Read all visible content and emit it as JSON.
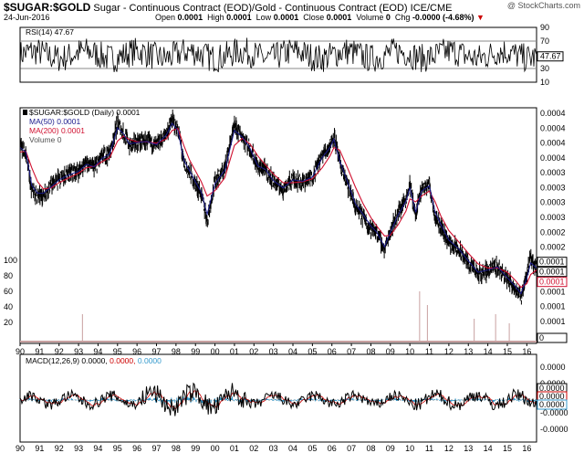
{
  "header": {
    "symbol": "$SUGAR:$GOLD",
    "description": "Sugar - Continuous Contract (EOD)/Gold - Continuous Contract (EOD) ICE/CME",
    "date": "24-Jun-2016",
    "open_label": "Open",
    "open_value": "0.0001",
    "high_label": "High",
    "high_value": "0.0001",
    "low_label": "Low",
    "low_value": "0.0001",
    "close_label": "Close",
    "close_value": "0.0001",
    "volume_label": "Volume",
    "volume_value": "0",
    "chg_label": "Chg",
    "chg_value": "-0.0000 (-4.68%)",
    "chg_arrow": "▼",
    "copyright": "@ StockCharts.com"
  },
  "colors": {
    "price": "#000000",
    "ma50": "#1a1a8c",
    "ma200": "#d01030",
    "volume": "#c8a0a0",
    "macd_signal": "#cc0000",
    "macd_hist": "#3399cc",
    "frame": "#000000",
    "grid": "#cccccc"
  },
  "chart_data": [
    {
      "type": "line",
      "panel": "rsi",
      "legend": "RSI(14) 47.67",
      "y_ticks": [
        "90",
        "70",
        "50",
        "30",
        "10"
      ],
      "y_range": [
        10,
        90
      ],
      "reference_lines": [
        70,
        30
      ],
      "last_value": 47.67,
      "last_value_label": "47.67"
    },
    {
      "type": "line",
      "panel": "price",
      "legend": {
        "price": "$SUGAR:$GOLD (Daily) 0.0001",
        "ma50": "MA(50) 0.0001",
        "ma200": "MA(200) 0.0001",
        "volume": "Volume 0"
      },
      "y_ticks_right": [
        "0.0004",
        "0.0004",
        "0.0004",
        "0.0004",
        "0.0003",
        "0.0003",
        "0.0003",
        "0.0003",
        "0.0002",
        "0.0002",
        "0.0002",
        "0.0002",
        "0.0001",
        "0.0001",
        "0.0001"
      ],
      "y_ticks_left": [
        "100",
        "80",
        "60",
        "40",
        "20"
      ],
      "last_value_labels": [
        "0.0001",
        "0.0001",
        "0.0001",
        "0"
      ],
      "x_ticks": [
        "90",
        "91",
        "92",
        "93",
        "94",
        "95",
        "96",
        "97",
        "98",
        "99",
        "00",
        "01",
        "02",
        "03",
        "04",
        "05",
        "06",
        "07",
        "08",
        "09",
        "10",
        "11",
        "12",
        "13",
        "14",
        "15",
        "16"
      ],
      "x": [
        1990.0,
        1990.3,
        1990.6,
        1990.9,
        1991.2,
        1991.6,
        1992.0,
        1992.5,
        1993.0,
        1993.4,
        1993.8,
        1994.2,
        1994.6,
        1995.0,
        1995.3,
        1995.6,
        1996.0,
        1996.5,
        1997.0,
        1997.5,
        1997.8,
        1998.1,
        1998.4,
        1998.7,
        1999.0,
        1999.3,
        1999.6,
        2000.0,
        2000.5,
        2001.0,
        2001.4,
        2001.8,
        2002.2,
        2002.6,
        2003.0,
        2003.5,
        2004.0,
        2004.5,
        2005.0,
        2005.5,
        2005.9,
        2006.1,
        2006.4,
        2006.8,
        2007.2,
        2007.6,
        2008.0,
        2008.3,
        2008.7,
        2009.0,
        2009.4,
        2009.8,
        2010.0,
        2010.3,
        2010.6,
        2011.0,
        2011.3,
        2011.6,
        2012.0,
        2012.5,
        2013.0,
        2013.5,
        2014.0,
        2014.5,
        2015.0,
        2015.4,
        2015.7,
        2016.0,
        2016.2,
        2016.5
      ],
      "series": [
        {
          "name": "$SUGAR:$GOLD (Daily)",
          "values": [
            0.000318,
            0.000295,
            0.000215,
            0.000205,
            0.000208,
            0.000225,
            0.000238,
            0.000248,
            0.000255,
            0.000275,
            0.000262,
            0.000288,
            0.000298,
            0.000385,
            0.000355,
            0.000318,
            0.000328,
            0.00033,
            0.000318,
            0.000352,
            0.000395,
            0.000365,
            0.000272,
            0.00025,
            0.000228,
            0.000208,
            0.000165,
            0.000232,
            0.000258,
            0.000375,
            0.000345,
            0.00031,
            0.000262,
            0.000258,
            0.000232,
            0.000218,
            0.000238,
            0.000232,
            0.000242,
            0.000292,
            0.000318,
            0.000348,
            0.000272,
            0.000225,
            0.000186,
            0.000172,
            0.000155,
            0.00015,
            0.000128,
            0.000152,
            0.000178,
            0.0002,
            0.000228,
            0.000172,
            0.000218,
            0.000228,
            0.000172,
            0.000158,
            0.000138,
            0.000128,
            0.000115,
            0.000104,
            0.000108,
            0.000112,
            0.0001,
            9.3e-05,
            8.6e-05,
            0.000104,
            0.00012,
            0.000108
          ]
        },
        {
          "name": "MA(50)",
          "values": [
            0.000312,
            0.0003,
            0.000225,
            0.00021,
            0.00021,
            0.000222,
            0.000236,
            0.000246,
            0.000254,
            0.00027,
            0.000264,
            0.000284,
            0.000295,
            0.00037,
            0.000352,
            0.000322,
            0.000326,
            0.000329,
            0.00032,
            0.000348,
            0.000385,
            0.000362,
            0.00028,
            0.000255,
            0.000232,
            0.000212,
            0.000175,
            0.000228,
            0.000256,
            0.000362,
            0.000342,
            0.00031,
            0.000266,
            0.000258,
            0.000234,
            0.00022,
            0.000236,
            0.000233,
            0.000242,
            0.000286,
            0.000312,
            0.000336,
            0.000278,
            0.000232,
            0.000192,
            0.000175,
            0.000158,
            0.00015,
            0.000132,
            0.00015,
            0.000174,
            0.000196,
            0.00022,
            0.000178,
            0.000214,
            0.000224,
            0.000178,
            0.00016,
            0.00014,
            0.00013,
            0.000117,
            0.000106,
            0.000108,
            0.000111,
            0.000101,
            9.4e-05,
            8.8e-05,
            0.000101,
            0.000115,
            0.00011
          ]
        },
        {
          "name": "MA(200)",
          "values": [
            0.0003,
            0.000302,
            0.000262,
            0.000232,
            0.000218,
            0.00022,
            0.00023,
            0.00024,
            0.00025,
            0.000262,
            0.000265,
            0.000276,
            0.000286,
            0.00033,
            0.000345,
            0.000335,
            0.000328,
            0.000328,
            0.000324,
            0.000336,
            0.000362,
            0.000368,
            0.000318,
            0.00028,
            0.000255,
            0.000232,
            0.000205,
            0.000215,
            0.00024,
            0.000318,
            0.000338,
            0.000322,
            0.00029,
            0.000268,
            0.000248,
            0.00023,
            0.00023,
            0.000232,
            0.000238,
            0.000262,
            0.00029,
            0.000312,
            0.000305,
            0.000262,
            0.000222,
            0.000192,
            0.00017,
            0.000158,
            0.000145,
            0.000146,
            0.00016,
            0.00018,
            0.0002,
            0.000195,
            0.000205,
            0.000214,
            0.000195,
            0.000172,
            0.000152,
            0.000138,
            0.000125,
            0.000114,
            0.00011,
            0.00011,
            0.000106,
            9.9e-05,
            9.3e-05,
            9.6e-05,
            0.000104,
            0.000108
          ]
        }
      ],
      "volume_spikes": [
        {
          "x": 1993.2,
          "v": 30
        },
        {
          "x": 2010.5,
          "v": 55
        },
        {
          "x": 2010.9,
          "v": 40
        },
        {
          "x": 2013.3,
          "v": 25
        },
        {
          "x": 2014.4,
          "v": 30
        },
        {
          "x": 2015.1,
          "v": 20
        }
      ]
    },
    {
      "type": "line",
      "panel": "macd",
      "legend_prefix": "MACD(12,26,9)",
      "legend_macd": "0.0000,",
      "legend_signal": "0.0000,",
      "legend_hist": "0.0000",
      "y_ticks": [
        "0.0000",
        "0.0000",
        "-0.0000",
        "-0.0000"
      ],
      "last_value_labels": [
        "0.0000",
        "0.0000",
        "0.0000"
      ]
    }
  ]
}
